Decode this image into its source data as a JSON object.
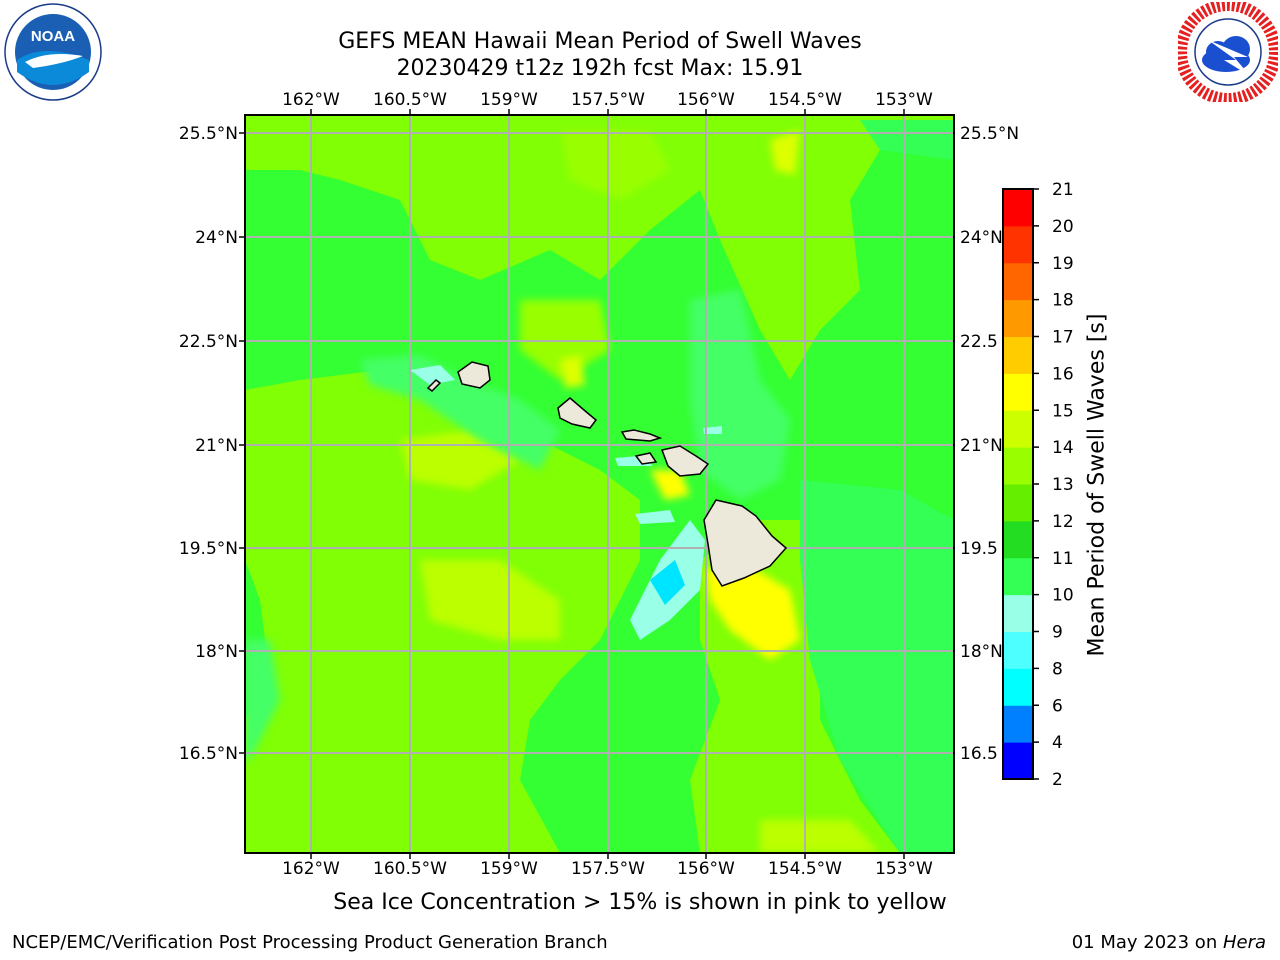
{
  "title": {
    "line1": "GEFS MEAN Hawaii Mean Period of Swell Waves",
    "line2": "20230429 t12z 192h fcst   Max: 15.91"
  },
  "logos": {
    "left": {
      "name": "noaa-logo",
      "text": "NOAA",
      "ring_text": "NATIONAL OCEANIC AND ATMOSPHERIC ADMINISTRATION · U.S. DEPARTMENT OF COMMERCE"
    },
    "right": {
      "name": "nws-logo",
      "ring_text": "NATIONAL WEATHER SERVICE"
    }
  },
  "map": {
    "lon_ticks": [
      "162°W",
      "160.5°W",
      "159°W",
      "157.5°W",
      "156°W",
      "154.5°W",
      "153°W"
    ],
    "lat_ticks_left": [
      "25.5°N",
      "24°N",
      "22.5°N",
      "21°N",
      "19.5°N",
      "18°N",
      "16.5°N"
    ],
    "lat_ticks_right": [
      "25.5°N",
      "24°N",
      "22.5",
      "21°N",
      "19.5",
      "18°N",
      "16.5"
    ],
    "lon_range": [
      -163,
      -152.2
    ],
    "lat_range": [
      15,
      25.8
    ],
    "grid": true,
    "ocean_color": "#33ff33",
    "land_color": "#ece9da"
  },
  "colorbar": {
    "label": "Mean Period of Swell Waves [s]",
    "ticks": [
      "21",
      "20",
      "19",
      "18",
      "17",
      "16",
      "15",
      "14",
      "13",
      "12",
      "11",
      "10",
      "9",
      "8",
      "6",
      "4",
      "2"
    ],
    "levels": [
      2,
      4,
      6,
      8,
      9,
      10,
      11,
      12,
      13,
      14,
      15,
      16,
      17,
      18,
      19,
      20,
      21
    ],
    "colors": [
      "#0000ff",
      "#0080ff",
      "#00ffff",
      "#4dffff",
      "#99ffe6",
      "#33ff55",
      "#22dd22",
      "#66ee00",
      "#99ff00",
      "#ccff00",
      "#ffff00",
      "#ffcc00",
      "#ff9900",
      "#ff6600",
      "#ff3300",
      "#ff0000"
    ]
  },
  "note": "Sea Ice Concentration > 15% is shown in pink to yellow",
  "footer": {
    "left": "NCEP/EMC/Verification Post Processing Product Generation Branch",
    "right_date": "01 May 2023 on ",
    "right_host": "Hera"
  }
}
